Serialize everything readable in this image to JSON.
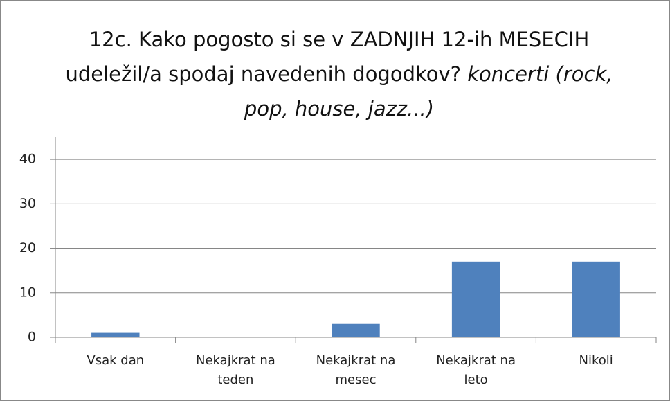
{
  "chart_data": {
    "type": "bar",
    "title": "12c. Kako pogosto si se v ZADNJIH 12-ih MESECIH udeležil/a spodaj navedenih dogodkov?",
    "subtitle": "koncerti (rock, pop, house, jazz...)",
    "categories": [
      "Vsak dan",
      "Nekajkrat na teden",
      "Nekajkrat na mesec",
      "Nekajkrat na leto",
      "Nikoli"
    ],
    "values": [
      1,
      0,
      3,
      17,
      17
    ],
    "color": "#4f81bd",
    "ylim": [
      0,
      45
    ],
    "yticks": [
      0,
      10,
      20,
      30,
      40
    ],
    "grid": true
  }
}
